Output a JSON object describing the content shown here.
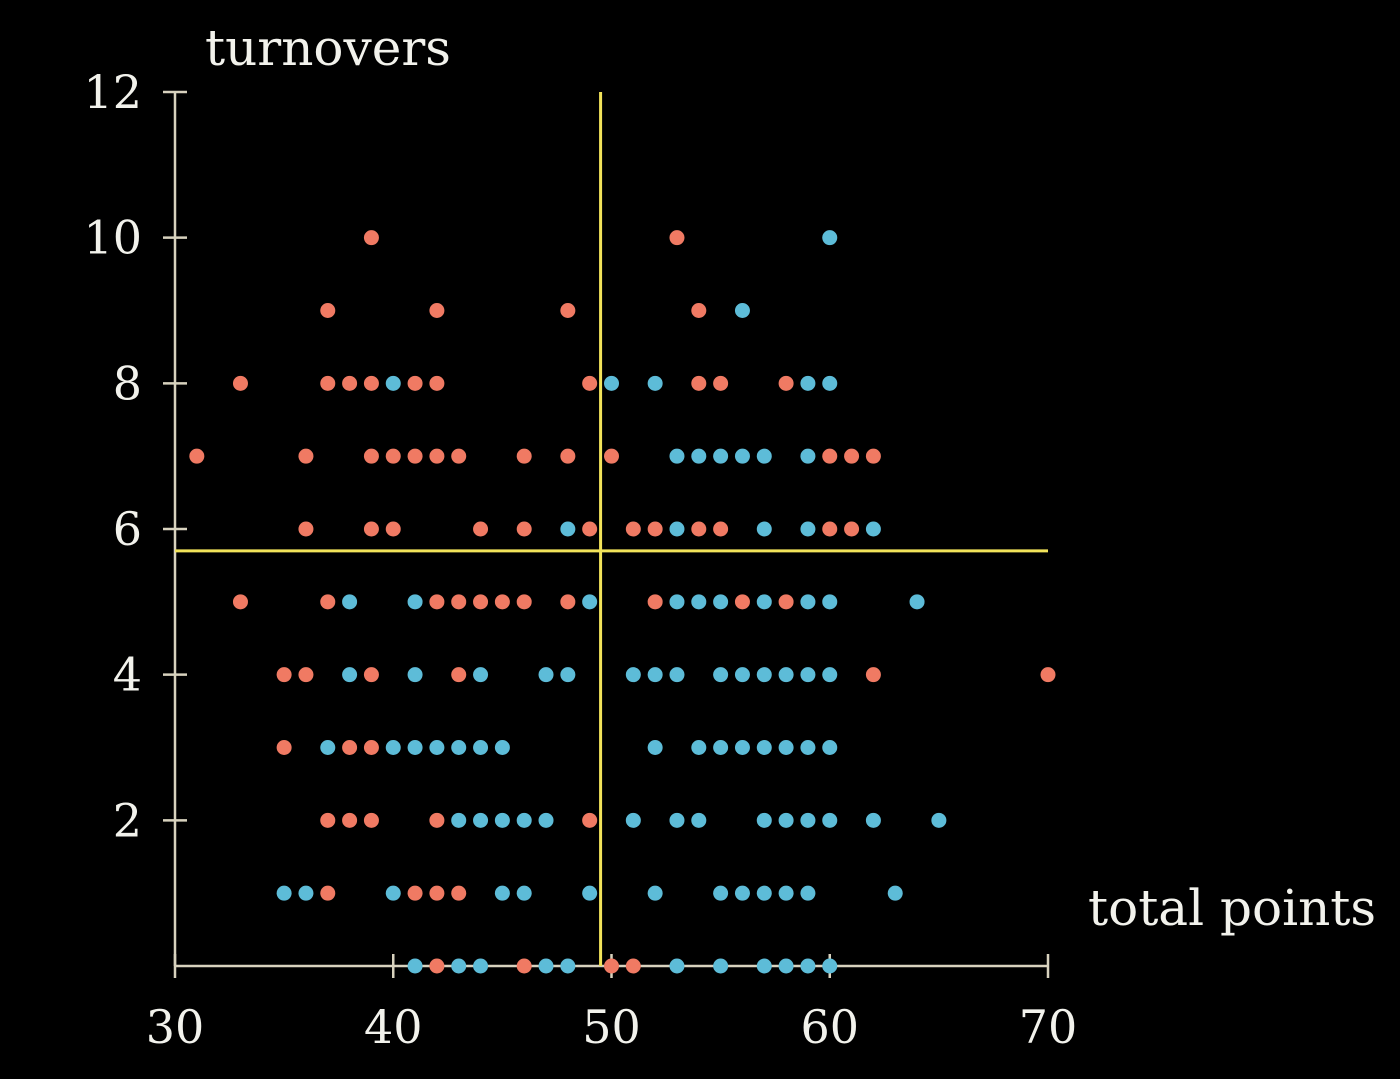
{
  "chart_data": {
    "type": "scatter",
    "title": "",
    "xlabel": "total points",
    "ylabel": "turnovers",
    "xlim": [
      30,
      70
    ],
    "ylim": [
      0,
      12
    ],
    "x_ticks": [
      "30",
      "40",
      "50",
      "60",
      "70"
    ],
    "y_ticks": [
      "2",
      "4",
      "6",
      "8",
      "10",
      "12"
    ],
    "grid": false,
    "legend": "none",
    "colors": {
      "series_a": "#f07a63",
      "series_b": "#5dbcd8",
      "reference": "#f2e35a",
      "axis": "#d8d2be"
    },
    "reference_lines": {
      "x": 49.5,
      "y": 5.7
    },
    "series": [
      {
        "color": "#f07a63",
        "points": [
          [
            39,
            10
          ],
          [
            53,
            10
          ],
          [
            37,
            9
          ],
          [
            42,
            9
          ],
          [
            48,
            9
          ],
          [
            54,
            9
          ],
          [
            33,
            8
          ],
          [
            37,
            8
          ],
          [
            38,
            8
          ],
          [
            39,
            8
          ],
          [
            41,
            8
          ],
          [
            42,
            8
          ],
          [
            49,
            8
          ],
          [
            54,
            8
          ],
          [
            55,
            8
          ],
          [
            58,
            8
          ],
          [
            31,
            7
          ],
          [
            36,
            7
          ],
          [
            39,
            7
          ],
          [
            40,
            7
          ],
          [
            41,
            7
          ],
          [
            42,
            7
          ],
          [
            43,
            7
          ],
          [
            46,
            7
          ],
          [
            48,
            7
          ],
          [
            50,
            7
          ],
          [
            60,
            7
          ],
          [
            61,
            7
          ],
          [
            62,
            7
          ],
          [
            36,
            6
          ],
          [
            39,
            6
          ],
          [
            40,
            6
          ],
          [
            44,
            6
          ],
          [
            46,
            6
          ],
          [
            49,
            6
          ],
          [
            51,
            6
          ],
          [
            52,
            6
          ],
          [
            54,
            6
          ],
          [
            55,
            6
          ],
          [
            60,
            6
          ],
          [
            61,
            6
          ],
          [
            33,
            5
          ],
          [
            37,
            5
          ],
          [
            42,
            5
          ],
          [
            43,
            5
          ],
          [
            44,
            5
          ],
          [
            45,
            5
          ],
          [
            46,
            5
          ],
          [
            48,
            5
          ],
          [
            52,
            5
          ],
          [
            56,
            5
          ],
          [
            58,
            5
          ],
          [
            35,
            4
          ],
          [
            36,
            4
          ],
          [
            39,
            4
          ],
          [
            43,
            4
          ],
          [
            62,
            4
          ],
          [
            70,
            4
          ],
          [
            35,
            3
          ],
          [
            38,
            3
          ],
          [
            39,
            3
          ],
          [
            37,
            2
          ],
          [
            38,
            2
          ],
          [
            39,
            2
          ],
          [
            42,
            2
          ],
          [
            49,
            2
          ],
          [
            37,
            1
          ],
          [
            41,
            1
          ],
          [
            42,
            1
          ],
          [
            43,
            1
          ],
          [
            42,
            0
          ],
          [
            46,
            0
          ],
          [
            50,
            0
          ],
          [
            51,
            0
          ]
        ]
      },
      {
        "color": "#5dbcd8",
        "points": [
          [
            60,
            10
          ],
          [
            56,
            9
          ],
          [
            40,
            8
          ],
          [
            50,
            8
          ],
          [
            52,
            8
          ],
          [
            59,
            8
          ],
          [
            60,
            8
          ],
          [
            53,
            7
          ],
          [
            54,
            7
          ],
          [
            55,
            7
          ],
          [
            56,
            7
          ],
          [
            57,
            7
          ],
          [
            59,
            7
          ],
          [
            48,
            6
          ],
          [
            53,
            6
          ],
          [
            57,
            6
          ],
          [
            59,
            6
          ],
          [
            62,
            6
          ],
          [
            38,
            5
          ],
          [
            41,
            5
          ],
          [
            49,
            5
          ],
          [
            53,
            5
          ],
          [
            54,
            5
          ],
          [
            55,
            5
          ],
          [
            57,
            5
          ],
          [
            59,
            5
          ],
          [
            60,
            5
          ],
          [
            64,
            5
          ],
          [
            38,
            4
          ],
          [
            41,
            4
          ],
          [
            44,
            4
          ],
          [
            47,
            4
          ],
          [
            48,
            4
          ],
          [
            51,
            4
          ],
          [
            52,
            4
          ],
          [
            53,
            4
          ],
          [
            55,
            4
          ],
          [
            56,
            4
          ],
          [
            57,
            4
          ],
          [
            58,
            4
          ],
          [
            59,
            4
          ],
          [
            60,
            4
          ],
          [
            37,
            3
          ],
          [
            40,
            3
          ],
          [
            41,
            3
          ],
          [
            42,
            3
          ],
          [
            43,
            3
          ],
          [
            44,
            3
          ],
          [
            45,
            3
          ],
          [
            52,
            3
          ],
          [
            54,
            3
          ],
          [
            55,
            3
          ],
          [
            56,
            3
          ],
          [
            57,
            3
          ],
          [
            58,
            3
          ],
          [
            59,
            3
          ],
          [
            60,
            3
          ],
          [
            43,
            2
          ],
          [
            44,
            2
          ],
          [
            45,
            2
          ],
          [
            46,
            2
          ],
          [
            47,
            2
          ],
          [
            51,
            2
          ],
          [
            53,
            2
          ],
          [
            54,
            2
          ],
          [
            57,
            2
          ],
          [
            58,
            2
          ],
          [
            59,
            2
          ],
          [
            60,
            2
          ],
          [
            62,
            2
          ],
          [
            65,
            2
          ],
          [
            35,
            1
          ],
          [
            36,
            1
          ],
          [
            40,
            1
          ],
          [
            45,
            1
          ],
          [
            46,
            1
          ],
          [
            49,
            1
          ],
          [
            52,
            1
          ],
          [
            55,
            1
          ],
          [
            56,
            1
          ],
          [
            57,
            1
          ],
          [
            58,
            1
          ],
          [
            59,
            1
          ],
          [
            63,
            1
          ],
          [
            41,
            0
          ],
          [
            43,
            0
          ],
          [
            44,
            0
          ],
          [
            47,
            0
          ],
          [
            48,
            0
          ],
          [
            53,
            0
          ],
          [
            55,
            0
          ],
          [
            57,
            0
          ],
          [
            58,
            0
          ],
          [
            59,
            0
          ],
          [
            60,
            0
          ]
        ]
      }
    ]
  }
}
